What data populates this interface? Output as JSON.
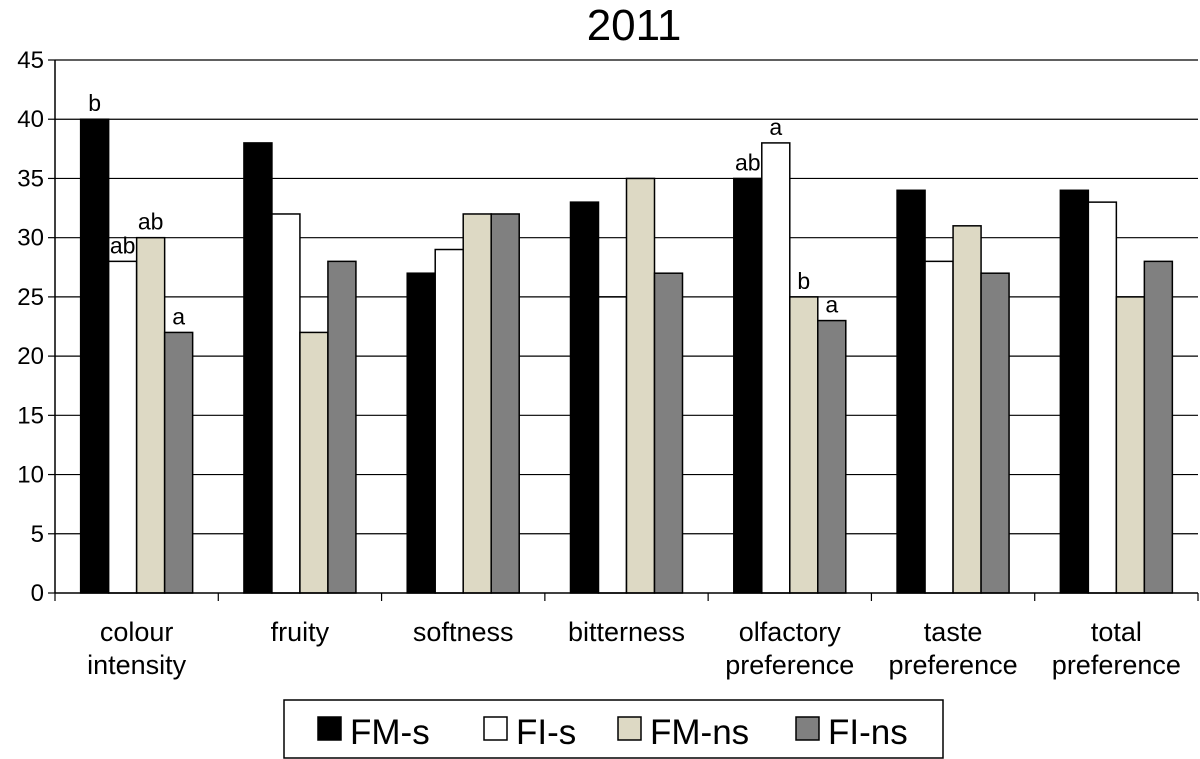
{
  "chart_data": {
    "type": "bar",
    "title": "2011",
    "xlabel": "",
    "ylabel": "",
    "ylim": [
      0,
      45
    ],
    "yticks": [
      0,
      5,
      10,
      15,
      20,
      25,
      30,
      35,
      40,
      45
    ],
    "grid": "horizontal",
    "legend_position": "bottom",
    "categories": [
      [
        "colour",
        "intensity"
      ],
      [
        "fruity"
      ],
      [
        "softness"
      ],
      [
        "bitterness"
      ],
      [
        "olfactory",
        "preference"
      ],
      [
        "taste",
        "preference"
      ],
      [
        "total",
        "preference"
      ]
    ],
    "series": [
      {
        "name": "FM-s",
        "color": "#000000",
        "values": [
          40,
          38,
          27,
          33,
          35,
          34,
          34
        ],
        "annotations": [
          "b",
          "",
          "",
          "",
          "ab",
          "",
          ""
        ]
      },
      {
        "name": "FI-s",
        "color": "#ffffff",
        "values": [
          28,
          32,
          29,
          25,
          38,
          28,
          33
        ],
        "annotations": [
          "ab",
          "",
          "",
          "",
          "a",
          "",
          ""
        ]
      },
      {
        "name": "FM-ns",
        "color": "#ddd9c4",
        "values": [
          30,
          22,
          32,
          35,
          25,
          31,
          25
        ],
        "annotations": [
          "ab",
          "",
          "",
          "",
          "b",
          "",
          ""
        ]
      },
      {
        "name": "FI-ns",
        "color": "#808080",
        "values": [
          22,
          28,
          32,
          27,
          23,
          27,
          28
        ],
        "annotations": [
          "a",
          "",
          "",
          "",
          "a",
          "",
          ""
        ]
      }
    ]
  }
}
